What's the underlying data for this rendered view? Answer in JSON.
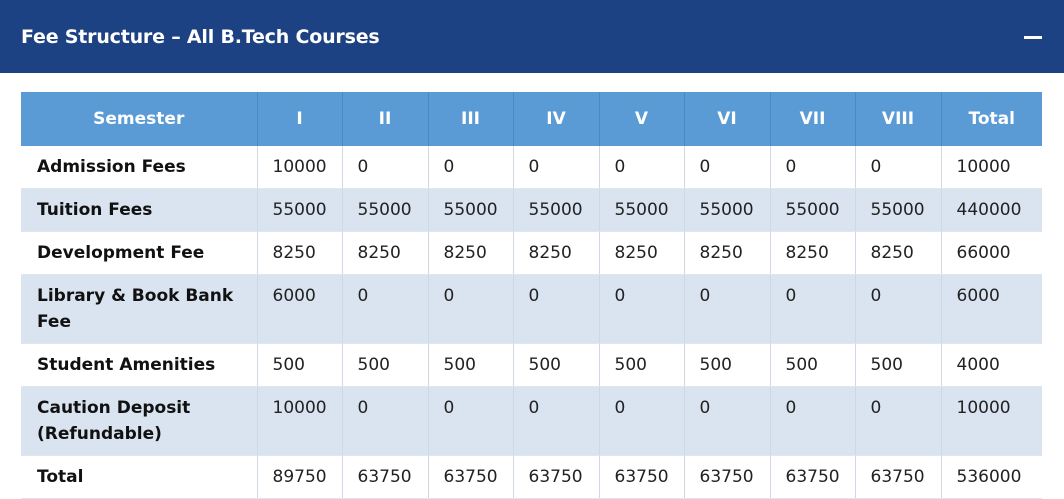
{
  "header": {
    "title": "Fee Structure – All B.Tech Courses",
    "collapse_icon": "minus-icon"
  },
  "table": {
    "columns": [
      "Semester",
      "I",
      "II",
      "III",
      "IV",
      "V",
      "VI",
      "VII",
      "VIII",
      "Total"
    ],
    "rows": [
      {
        "label": "Admission Fees",
        "values": [
          "10000",
          "0",
          "0",
          "0",
          "0",
          "0",
          "0",
          "0",
          "10000"
        ]
      },
      {
        "label": "Tuition Fees",
        "values": [
          "55000",
          "55000",
          "55000",
          "55000",
          "55000",
          "55000",
          "55000",
          "55000",
          "440000"
        ]
      },
      {
        "label": "Development Fee",
        "values": [
          "8250",
          "8250",
          "8250",
          "8250",
          "8250",
          "8250",
          "8250",
          "8250",
          "66000"
        ]
      },
      {
        "label": "Library & Book Bank Fee",
        "values": [
          "6000",
          "0",
          "0",
          "0",
          "0",
          "0",
          "0",
          "0",
          "6000"
        ]
      },
      {
        "label": "Student Amenities",
        "values": [
          "500",
          "500",
          "500",
          "500",
          "500",
          "500",
          "500",
          "500",
          "4000"
        ]
      },
      {
        "label": "Caution Deposit (Refundable)",
        "values": [
          "10000",
          "0",
          "0",
          "0",
          "0",
          "0",
          "0",
          "0",
          "10000"
        ]
      },
      {
        "label": "Total",
        "values": [
          "89750",
          "63750",
          "63750",
          "63750",
          "63750",
          "63750",
          "63750",
          "63750",
          "536000"
        ]
      }
    ]
  },
  "colors": {
    "header_bg": "#1d4283",
    "table_header_bg": "#5b9bd5",
    "alt_row_bg": "#d9e4f0"
  }
}
